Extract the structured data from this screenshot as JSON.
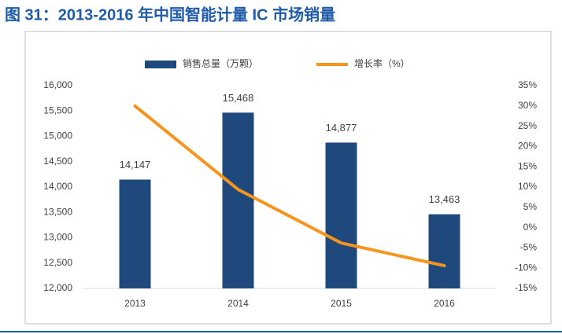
{
  "chart_data": {
    "type": "bar-line",
    "title": "图 31：2013-2016 年中国智能计量 IC 市场销量",
    "categories": [
      "2013",
      "2014",
      "2015",
      "2016"
    ],
    "series": [
      {
        "name": "销售总量（万颗）",
        "type": "bar",
        "color": "#1f497d",
        "values": [
          14147,
          15468,
          14877,
          13463
        ],
        "value_labels": [
          "14,147",
          "15,468",
          "14,877",
          "13,463"
        ]
      },
      {
        "name": "增长率（%）",
        "type": "line",
        "axis": "y2",
        "color": "#f7941d",
        "values": [
          30,
          9.4,
          -3.8,
          -9.4
        ]
      }
    ],
    "ylim": [
      12000,
      16000
    ],
    "yticks": [
      {
        "value": 12000,
        "label": "12,000"
      },
      {
        "value": 12500,
        "label": "12,500"
      },
      {
        "value": 13000,
        "label": "13,000"
      },
      {
        "value": 13500,
        "label": "13,500"
      },
      {
        "value": 14000,
        "label": "14,000"
      },
      {
        "value": 14500,
        "label": "14,500"
      },
      {
        "value": 15000,
        "label": "15,000"
      },
      {
        "value": 15500,
        "label": "15,500"
      },
      {
        "value": 16000,
        "label": "16,000"
      }
    ],
    "y2lim": [
      -15,
      35
    ],
    "y2ticks": [
      {
        "value": -15,
        "label": "-15%"
      },
      {
        "value": -10,
        "label": "-10%"
      },
      {
        "value": -5,
        "label": "-5%"
      },
      {
        "value": 0,
        "label": "0%"
      },
      {
        "value": 5,
        "label": "5%"
      },
      {
        "value": 10,
        "label": "10%"
      },
      {
        "value": 15,
        "label": "15%"
      },
      {
        "value": 20,
        "label": "20%"
      },
      {
        "value": 25,
        "label": "25%"
      },
      {
        "value": 30,
        "label": "30%"
      },
      {
        "value": 35,
        "label": "35%"
      }
    ],
    "legend": "top"
  }
}
